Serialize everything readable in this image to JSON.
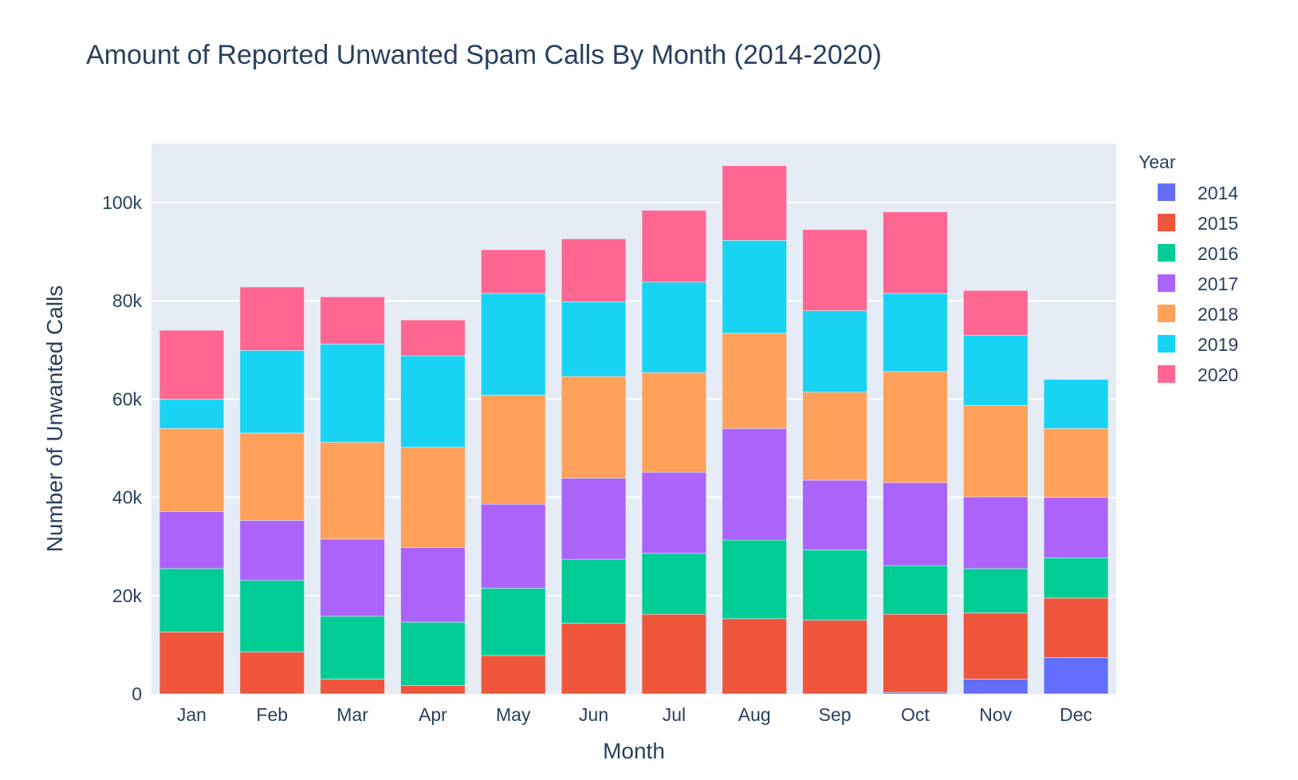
{
  "chart_data": {
    "type": "bar",
    "barmode": "stack",
    "title": "Amount of Reported Unwanted Spam Calls By Month (2014-2020)",
    "xlabel": "Month",
    "ylabel": "Number of Unwanted Calls",
    "ylim": [
      0,
      112000
    ],
    "yticks": [
      0,
      20000,
      40000,
      60000,
      80000,
      100000
    ],
    "ytick_labels": [
      "0",
      "20k",
      "40k",
      "60k",
      "80k",
      "100k"
    ],
    "grid": true,
    "legend_title": "Year",
    "legend_position": "right",
    "plot_background": "#e5ecf6",
    "categories": [
      "Jan",
      "Feb",
      "Mar",
      "Apr",
      "May",
      "Jun",
      "Jul",
      "Aug",
      "Sep",
      "Oct",
      "Nov",
      "Dec"
    ],
    "series": [
      {
        "name": "2014",
        "color": "#636efa",
        "values": [
          0,
          0,
          0,
          0,
          0,
          0,
          0,
          0,
          0,
          300,
          3000,
          7400
        ]
      },
      {
        "name": "2015",
        "color": "#ef553b",
        "values": [
          12600,
          8500,
          3000,
          1700,
          7800,
          14400,
          16200,
          15300,
          15000,
          15900,
          13500,
          12100
        ]
      },
      {
        "name": "2016",
        "color": "#00cc96",
        "values": [
          12900,
          14600,
          12800,
          12900,
          13700,
          13000,
          12400,
          16000,
          14300,
          9900,
          9000,
          8200
        ]
      },
      {
        "name": "2017",
        "color": "#ab63fa",
        "values": [
          11600,
          12200,
          15700,
          15200,
          17100,
          16500,
          16500,
          22700,
          14200,
          16900,
          14600,
          12300
        ]
      },
      {
        "name": "2018",
        "color": "#ffa15a",
        "values": [
          16900,
          17800,
          19700,
          20400,
          22200,
          20700,
          20300,
          19400,
          17900,
          22600,
          18600,
          14000
        ]
      },
      {
        "name": "2019",
        "color": "#19d3f3",
        "values": [
          6000,
          16800,
          20000,
          18600,
          20700,
          15200,
          18400,
          18900,
          16600,
          15900,
          14300,
          10000
        ]
      },
      {
        "name": "2020",
        "color": "#ff6692",
        "values": [
          14000,
          12900,
          9600,
          7300,
          8900,
          12800,
          14600,
          15200,
          16500,
          16600,
          9100,
          0
        ]
      }
    ]
  }
}
